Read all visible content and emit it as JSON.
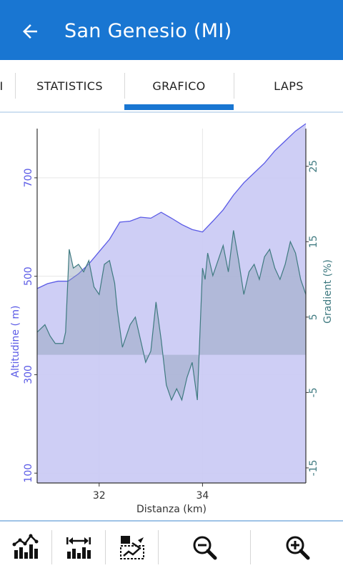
{
  "header": {
    "title": "San Genesio (MI)",
    "back_icon": "arrow-back-icon"
  },
  "tabs": [
    {
      "label": "I",
      "active": false
    },
    {
      "label": "STATISTICS",
      "active": false
    },
    {
      "label": "GRAFICO",
      "active": true
    },
    {
      "label": "LAPS",
      "active": false
    }
  ],
  "colors": {
    "primary": "#1976d2",
    "altitude": "#5a5ae6",
    "gradient": "#3f7a80"
  },
  "chart_data": {
    "type": "area",
    "xlabel": "Distanza (km)",
    "ylabel_left": "Altitudine ( m)",
    "ylabel_right": "Gradient (%)",
    "xlim": [
      30.8,
      36.0
    ],
    "ylim_left": [
      80,
      800
    ],
    "ylim_right": [
      -17,
      30
    ],
    "x_ticks": [
      "32",
      "34"
    ],
    "y_left_ticks": [
      "100",
      "300",
      "500",
      "700"
    ],
    "y_right_ticks": [
      "-15",
      "-5",
      "5",
      "15",
      "25"
    ],
    "grid": true,
    "series": [
      {
        "name": "Altitudine",
        "axis": "left",
        "x": [
          30.8,
          31.0,
          31.2,
          31.4,
          31.6,
          31.8,
          32.0,
          32.2,
          32.4,
          32.6,
          32.8,
          33.0,
          33.2,
          33.4,
          33.6,
          33.8,
          34.0,
          34.2,
          34.4,
          34.6,
          34.8,
          35.0,
          35.2,
          35.4,
          35.6,
          35.8,
          36.0
        ],
        "y": [
          475,
          485,
          490,
          490,
          505,
          525,
          550,
          575,
          610,
          612,
          620,
          618,
          630,
          618,
          605,
          595,
          590,
          612,
          635,
          665,
          690,
          710,
          730,
          755,
          775,
          795,
          810
        ]
      },
      {
        "name": "Gradient",
        "axis": "right",
        "x": [
          30.8,
          30.95,
          31.05,
          31.15,
          31.3,
          31.35,
          31.42,
          31.5,
          31.6,
          31.7,
          31.8,
          31.9,
          32.0,
          32.1,
          32.2,
          32.3,
          32.35,
          32.45,
          32.6,
          32.7,
          32.8,
          32.9,
          33.0,
          33.1,
          33.2,
          33.3,
          33.4,
          33.5,
          33.6,
          33.7,
          33.8,
          33.9,
          34.0,
          34.05,
          34.1,
          34.2,
          34.3,
          34.4,
          34.5,
          34.6,
          34.7,
          34.8,
          34.9,
          35.0,
          35.1,
          35.2,
          35.3,
          35.4,
          35.5,
          35.6,
          35.7,
          35.8,
          35.9,
          36.0
        ],
        "y": [
          3.0,
          4.0,
          2.5,
          1.5,
          1.5,
          3.0,
          14.0,
          11.5,
          12.0,
          11.0,
          12.5,
          9.0,
          8.0,
          12.0,
          12.5,
          9.5,
          6.0,
          1.0,
          4.0,
          5.0,
          2.0,
          -1.0,
          0.5,
          7.0,
          2.0,
          -4.0,
          -6.0,
          -4.5,
          -6.0,
          -3.0,
          -1.0,
          -6.0,
          11.5,
          10.0,
          13.5,
          10.5,
          12.5,
          14.5,
          11.0,
          16.5,
          12.5,
          8.0,
          11.0,
          12.0,
          10.0,
          13.0,
          14.0,
          11.5,
          10.0,
          12.0,
          15.0,
          13.5,
          10.0,
          8.0
        ]
      }
    ]
  },
  "toolbar": {
    "items": [
      {
        "icon": "line-bar-chart-icon"
      },
      {
        "icon": "horizontal-scale-chart-icon"
      },
      {
        "icon": "zoom-area-chart-icon"
      },
      {
        "icon": "zoom-out-icon"
      },
      {
        "icon": "zoom-in-icon"
      }
    ]
  }
}
